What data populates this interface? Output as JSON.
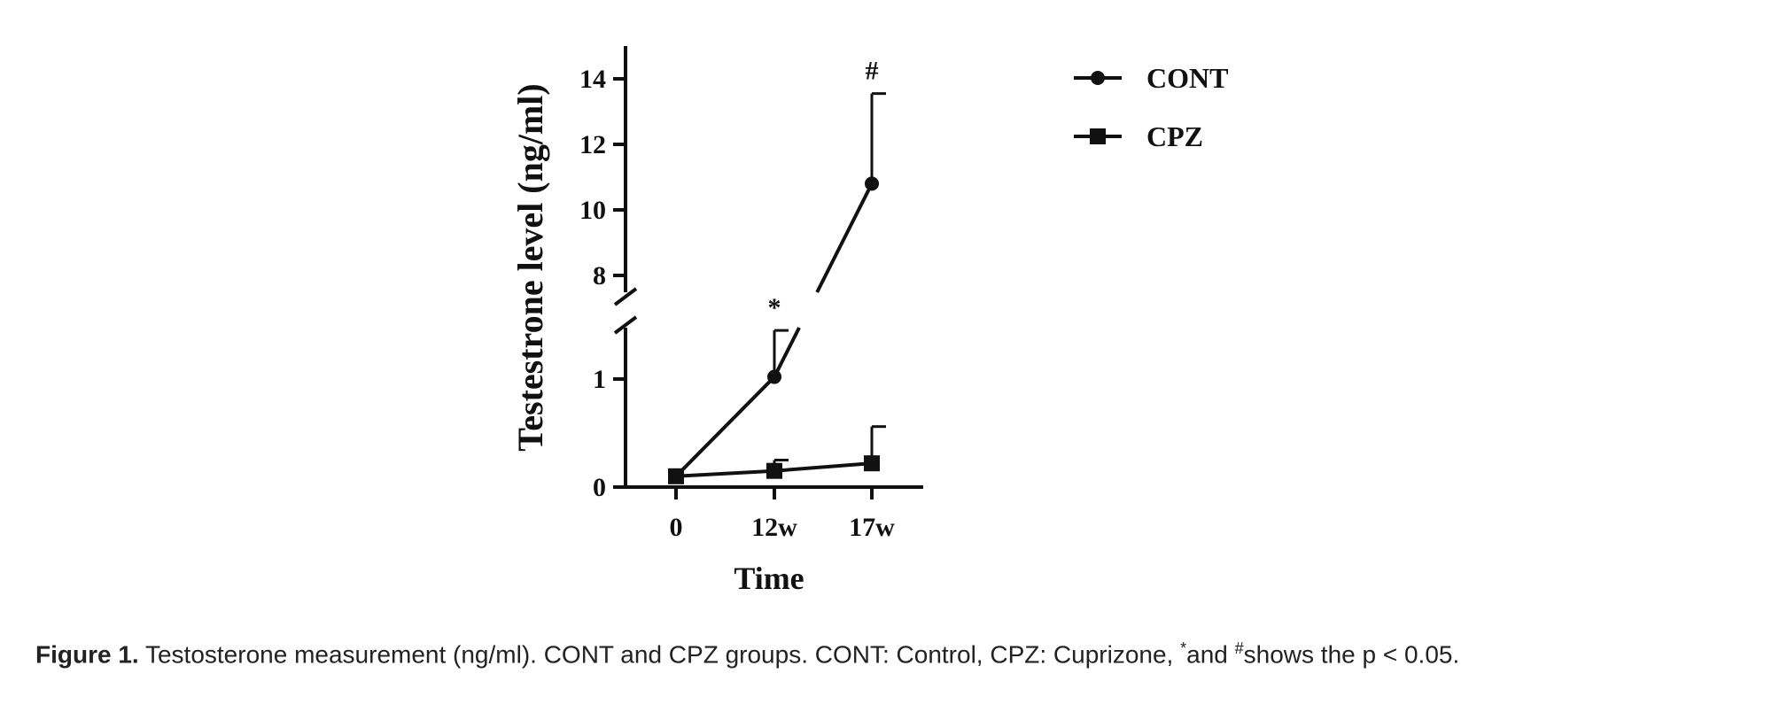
{
  "chart_data": {
    "type": "line",
    "ylabel": "Testestrone level (ng/ml)",
    "xlabel": "Time",
    "categories": [
      "0",
      "12w",
      "17w"
    ],
    "yaxis_break": {
      "lower_range": [
        0,
        1.5
      ],
      "upper_range": [
        7.3,
        15
      ],
      "lower_ticks": [
        0,
        1
      ],
      "upper_ticks": [
        8,
        10,
        12,
        14
      ]
    },
    "series": [
      {
        "name": "CONT",
        "marker": "circle",
        "values": [
          0.1,
          1.02,
          10.8
        ],
        "error_upper": [
          0.1,
          1.45,
          13.55
        ]
      },
      {
        "name": "CPZ",
        "marker": "square",
        "values": [
          0.1,
          0.15,
          0.22
        ],
        "error_upper": [
          0.1,
          0.25,
          0.56
        ]
      }
    ],
    "annotations": [
      {
        "category": "12w",
        "text": "*"
      },
      {
        "category": "17w",
        "text": "#"
      }
    ],
    "legend_position": "top-right",
    "color": "#111111"
  },
  "caption": {
    "label": "Figure 1.",
    "text_part1": " Testosterone measurement (ng/ml). CONT and CPZ groups. CONT: Control, CPZ: Cuprizone, ",
    "star": "*",
    "text_part2": "and ",
    "hash": "#",
    "text_part3": "shows the p < 0.05."
  }
}
